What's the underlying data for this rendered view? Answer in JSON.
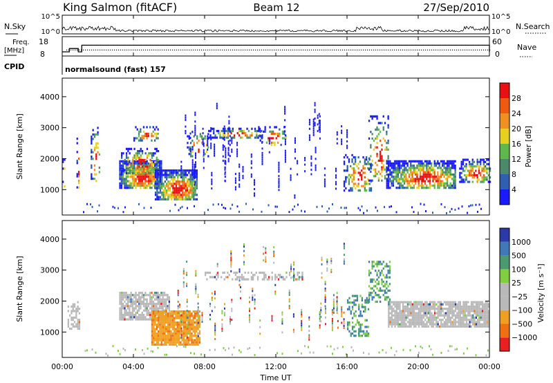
{
  "header": {
    "station": "King Salmon (fitACF)",
    "beam": "Beam 12",
    "date": "27/Sep/2010"
  },
  "param_panel": {
    "nsky_label": "N.Sky",
    "nsearch_label": "N.Search",
    "noise_ticks": [
      "10^5",
      "10^0"
    ],
    "freq_label": "Freq.",
    "freq_unit": "[MHz]",
    "freq_ticks": [
      "18",
      "8"
    ],
    "nave_label": "Nave",
    "nave_ticks": [
      "60",
      "0"
    ],
    "cpid_label": "CPID",
    "cpid_value": "normalsound (fast) 157"
  },
  "time_axis": {
    "label": "Time UT",
    "ticks": [
      "00:00",
      "04:00",
      "08:00",
      "12:00",
      "16:00",
      "20:00",
      "00:00"
    ]
  },
  "range_axis": {
    "label": "Slant Range [km]",
    "ticks": [
      "1000",
      "2000",
      "3000",
      "4000"
    ]
  },
  "power_scale": {
    "label": "Power [dB]",
    "ticks": [
      "4",
      "8",
      "12",
      "16",
      "20",
      "24",
      "28"
    ],
    "colors": [
      "#1a1aff",
      "#2f5fb0",
      "#4a8a6a",
      "#5fb84a",
      "#e8d020",
      "#f09020",
      "#ef5a10",
      "#e81010"
    ]
  },
  "velocity_scale": {
    "label": "Velocity [m s⁻¹]",
    "ticks": [
      "1000",
      "500",
      "100",
      "25",
      "−25",
      "−100",
      "−500",
      "−1000"
    ],
    "colors": [
      "#2a3aa8",
      "#3f79b8",
      "#4a9a70",
      "#7fcf40",
      "#b9b9b9",
      "#b9b9b9",
      "#f0a020",
      "#ef7010",
      "#e82020"
    ]
  },
  "chart_data": {
    "type": "heatmap",
    "title": "King Salmon (fitACF) Beam 12 27/Sep/2010",
    "xlabel": "Time UT",
    "ylabel": "Slant Range [km]",
    "xlim": [
      "00:00",
      "24:00"
    ],
    "ylim": [
      180,
      4600
    ],
    "panels": [
      {
        "name": "Power [dB]",
        "clim": [
          0,
          32
        ],
        "regions": [
          {
            "t0": 0.0,
            "t1": 0.15,
            "r0": 1100,
            "r1": 2000,
            "dense": 0.35
          },
          {
            "t0": 0.8,
            "t1": 0.95,
            "r0": 1050,
            "r1": 2750,
            "dense": 0.3
          },
          {
            "t0": 1.6,
            "t1": 2.1,
            "r0": 1300,
            "r1": 3100,
            "dense": 0.28
          },
          {
            "t0": 3.2,
            "t1": 5.6,
            "r0": 1050,
            "r1": 1950,
            "dense": 0.85
          },
          {
            "t0": 3.3,
            "t1": 5.4,
            "r0": 1550,
            "r1": 2350,
            "dense": 0.5
          },
          {
            "t0": 4.0,
            "t1": 5.4,
            "r0": 2600,
            "r1": 3050,
            "dense": 0.35
          },
          {
            "t0": 5.2,
            "t1": 7.6,
            "r0": 650,
            "r1": 1650,
            "dense": 0.85
          },
          {
            "t0": 7.0,
            "t1": 8.2,
            "r0": 2050,
            "r1": 2900,
            "dense": 0.3
          },
          {
            "t0": 8.2,
            "t1": 11.2,
            "r0": 2700,
            "r1": 3000,
            "dense": 0.5
          },
          {
            "t0": 11.0,
            "t1": 12.6,
            "r0": 2450,
            "r1": 3050,
            "dense": 0.3
          },
          {
            "t0": 15.8,
            "t1": 17.4,
            "r0": 1000,
            "r1": 2150,
            "dense": 0.35
          },
          {
            "t0": 17.2,
            "t1": 18.3,
            "r0": 1300,
            "r1": 3400,
            "dense": 0.3
          },
          {
            "t0": 18.2,
            "t1": 22.1,
            "r0": 1050,
            "r1": 1950,
            "dense": 0.75
          },
          {
            "t0": 22.3,
            "t1": 24.0,
            "r0": 1250,
            "r1": 2000,
            "dense": 0.6
          }
        ]
      },
      {
        "name": "Velocity [m s⁻¹]",
        "clim": [
          -1000,
          1000
        ],
        "regions": [
          {
            "t0": 0.3,
            "t1": 1.0,
            "r0": 1100,
            "r1": 2000,
            "dense": 0.5
          },
          {
            "t0": 3.2,
            "t1": 6.0,
            "r0": 1400,
            "r1": 2300,
            "dense": 0.8
          },
          {
            "t0": 5.0,
            "t1": 7.7,
            "r0": 600,
            "r1": 1700,
            "dense": 0.9
          },
          {
            "t0": 8.0,
            "t1": 13.5,
            "r0": 2700,
            "r1": 2950,
            "dense": 0.4
          },
          {
            "t0": 16.0,
            "t1": 17.2,
            "r0": 900,
            "r1": 2200,
            "dense": 0.4
          },
          {
            "t0": 17.2,
            "t1": 18.4,
            "r0": 2000,
            "r1": 3300,
            "dense": 0.45
          },
          {
            "t0": 18.3,
            "t1": 24.0,
            "r0": 1200,
            "r1": 2000,
            "dense": 0.85
          }
        ]
      }
    ],
    "noise_nsky_level": [
      1.5,
      3.0
    ],
    "frequency_mhz": {
      "t": [
        0.0,
        0.4,
        0.7,
        0.9,
        1.1,
        2.8,
        24.0
      ],
      "v": [
        10.5,
        12.5,
        12.5,
        10.5,
        14.5,
        14.5,
        10.5
      ]
    },
    "nave_level": 22
  }
}
